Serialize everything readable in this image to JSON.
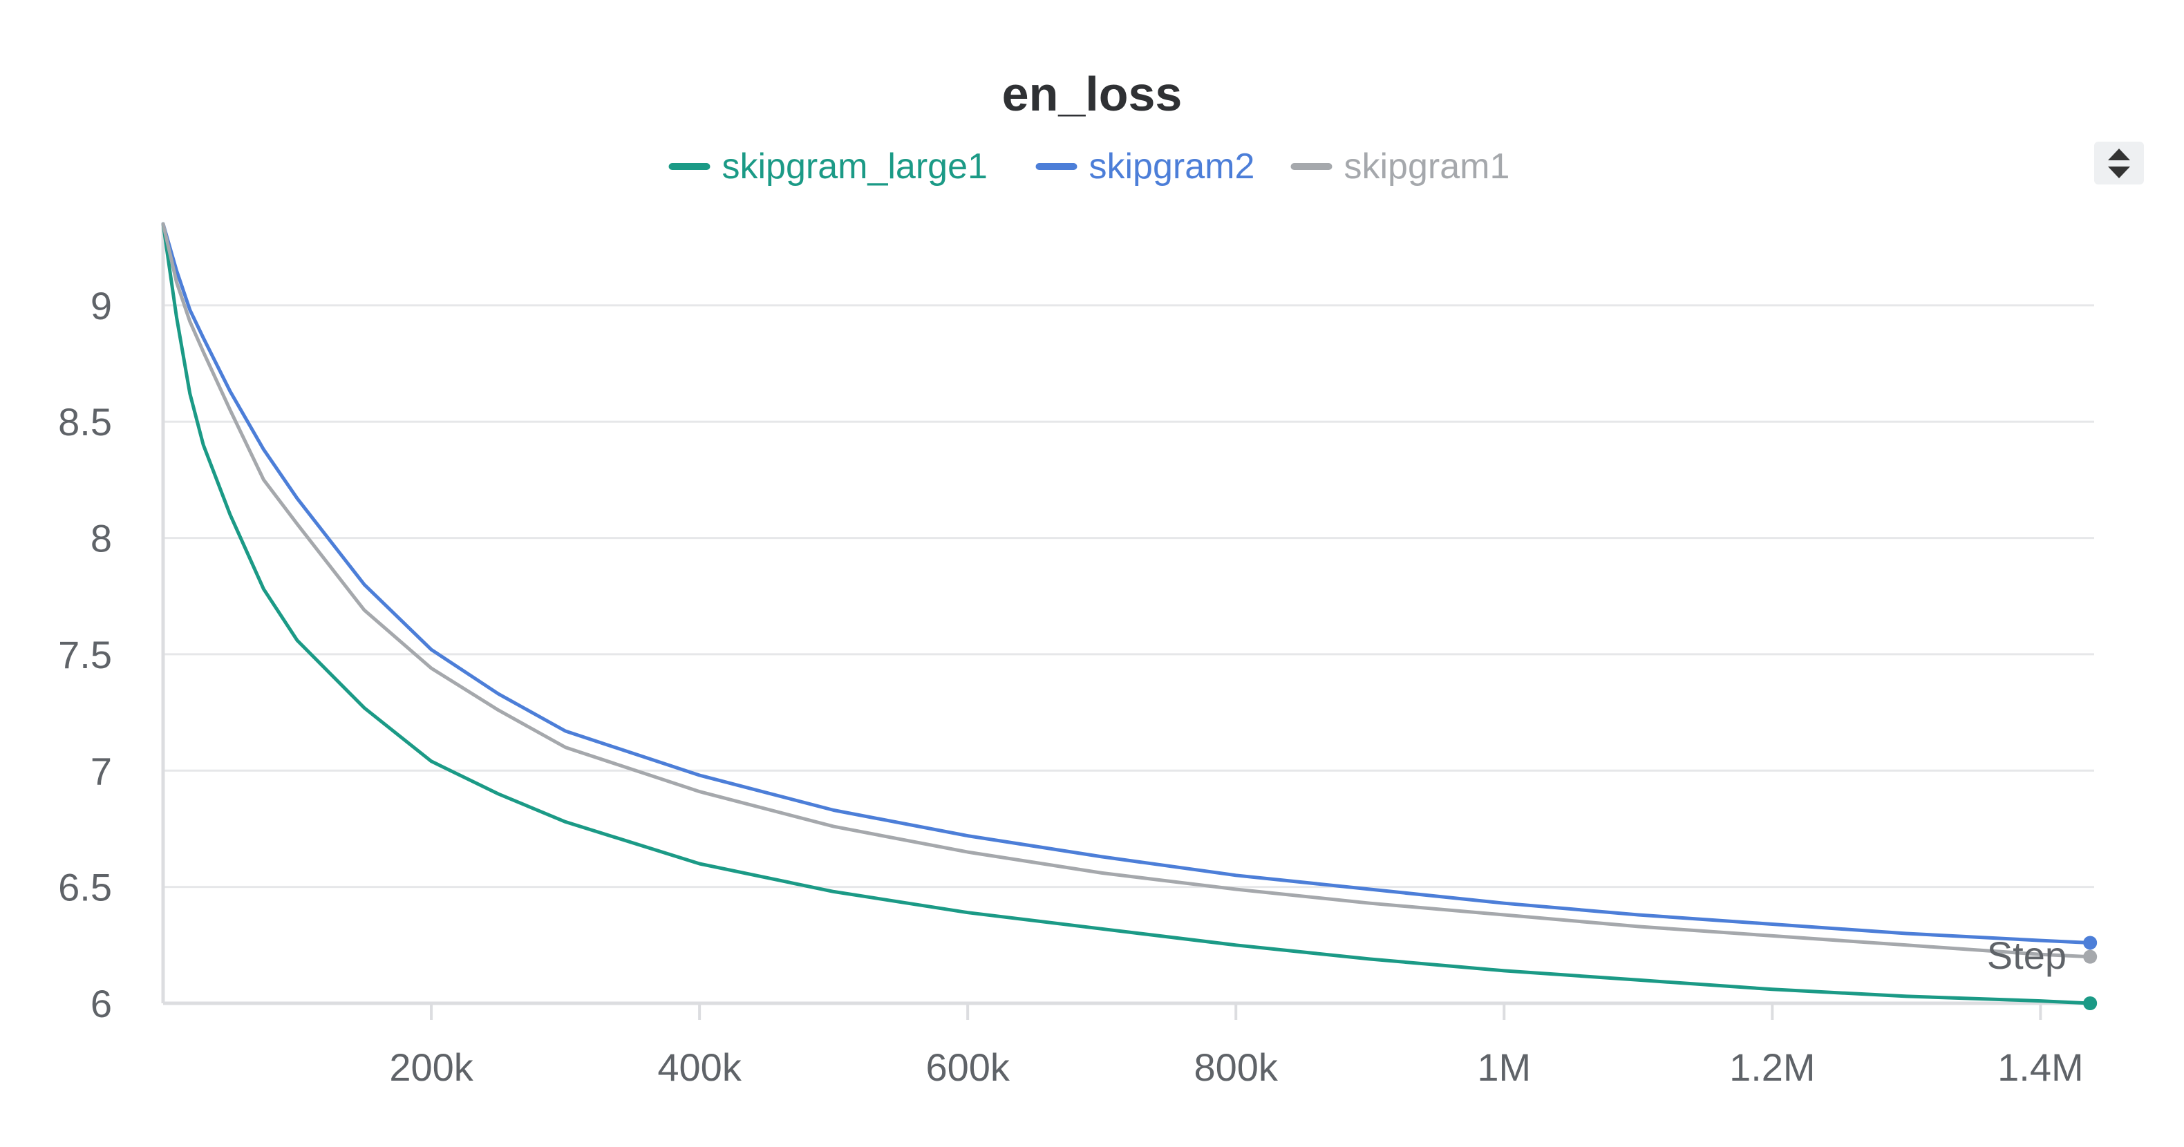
{
  "chart_data": {
    "type": "line",
    "title": "en_loss",
    "xlabel": "Step",
    "ylabel": "",
    "xlim": [
      0,
      1440000
    ],
    "ylim": [
      6,
      9.35
    ],
    "grid": true,
    "legend_position": "top-center",
    "x_ticks": [
      {
        "value": 200000,
        "label": "200k"
      },
      {
        "value": 400000,
        "label": "400k"
      },
      {
        "value": 600000,
        "label": "600k"
      },
      {
        "value": 800000,
        "label": "800k"
      },
      {
        "value": 1000000,
        "label": "1M"
      },
      {
        "value": 1200000,
        "label": "1.2M"
      },
      {
        "value": 1400000,
        "label": "1.4M"
      }
    ],
    "y_ticks": [
      {
        "value": 6,
        "label": "6"
      },
      {
        "value": 6.5,
        "label": "6.5"
      },
      {
        "value": 7,
        "label": "7"
      },
      {
        "value": 7.5,
        "label": "7.5"
      },
      {
        "value": 8,
        "label": "8"
      },
      {
        "value": 8.5,
        "label": "8.5"
      },
      {
        "value": 9,
        "label": "9"
      }
    ],
    "series": [
      {
        "name": "skipgram_large1",
        "color": "#1b9a86",
        "x": [
          0,
          10000,
          20000,
          30000,
          50000,
          75000,
          100000,
          150000,
          200000,
          250000,
          300000,
          400000,
          500000,
          600000,
          700000,
          800000,
          900000,
          1000000,
          1100000,
          1200000,
          1300000,
          1400000,
          1437000
        ],
        "y": [
          9.35,
          8.95,
          8.62,
          8.4,
          8.1,
          7.78,
          7.56,
          7.27,
          7.04,
          6.9,
          6.78,
          6.6,
          6.48,
          6.39,
          6.32,
          6.25,
          6.19,
          6.14,
          6.1,
          6.06,
          6.03,
          6.01,
          6.0
        ]
      },
      {
        "name": "skipgram2",
        "color": "#4c7ed8",
        "x": [
          0,
          10000,
          20000,
          30000,
          50000,
          75000,
          100000,
          150000,
          200000,
          250000,
          300000,
          400000,
          500000,
          600000,
          700000,
          800000,
          900000,
          1000000,
          1100000,
          1200000,
          1300000,
          1400000,
          1437000
        ],
        "y": [
          9.35,
          9.15,
          8.98,
          8.86,
          8.63,
          8.38,
          8.17,
          7.8,
          7.52,
          7.33,
          7.17,
          6.98,
          6.83,
          6.72,
          6.63,
          6.55,
          6.49,
          6.43,
          6.38,
          6.34,
          6.3,
          6.27,
          6.26
        ]
      },
      {
        "name": "skipgram1",
        "color": "#a5a8ac",
        "x": [
          0,
          10000,
          20000,
          30000,
          50000,
          75000,
          100000,
          150000,
          200000,
          250000,
          300000,
          400000,
          500000,
          600000,
          700000,
          800000,
          900000,
          1000000,
          1100000,
          1200000,
          1300000,
          1400000,
          1437000
        ],
        "y": [
          9.35,
          9.1,
          8.93,
          8.8,
          8.55,
          8.25,
          8.06,
          7.69,
          7.44,
          7.26,
          7.1,
          6.91,
          6.76,
          6.65,
          6.56,
          6.49,
          6.43,
          6.38,
          6.33,
          6.29,
          6.25,
          6.21,
          6.2
        ]
      }
    ]
  },
  "menu_icon": "sort-arrows-icon"
}
